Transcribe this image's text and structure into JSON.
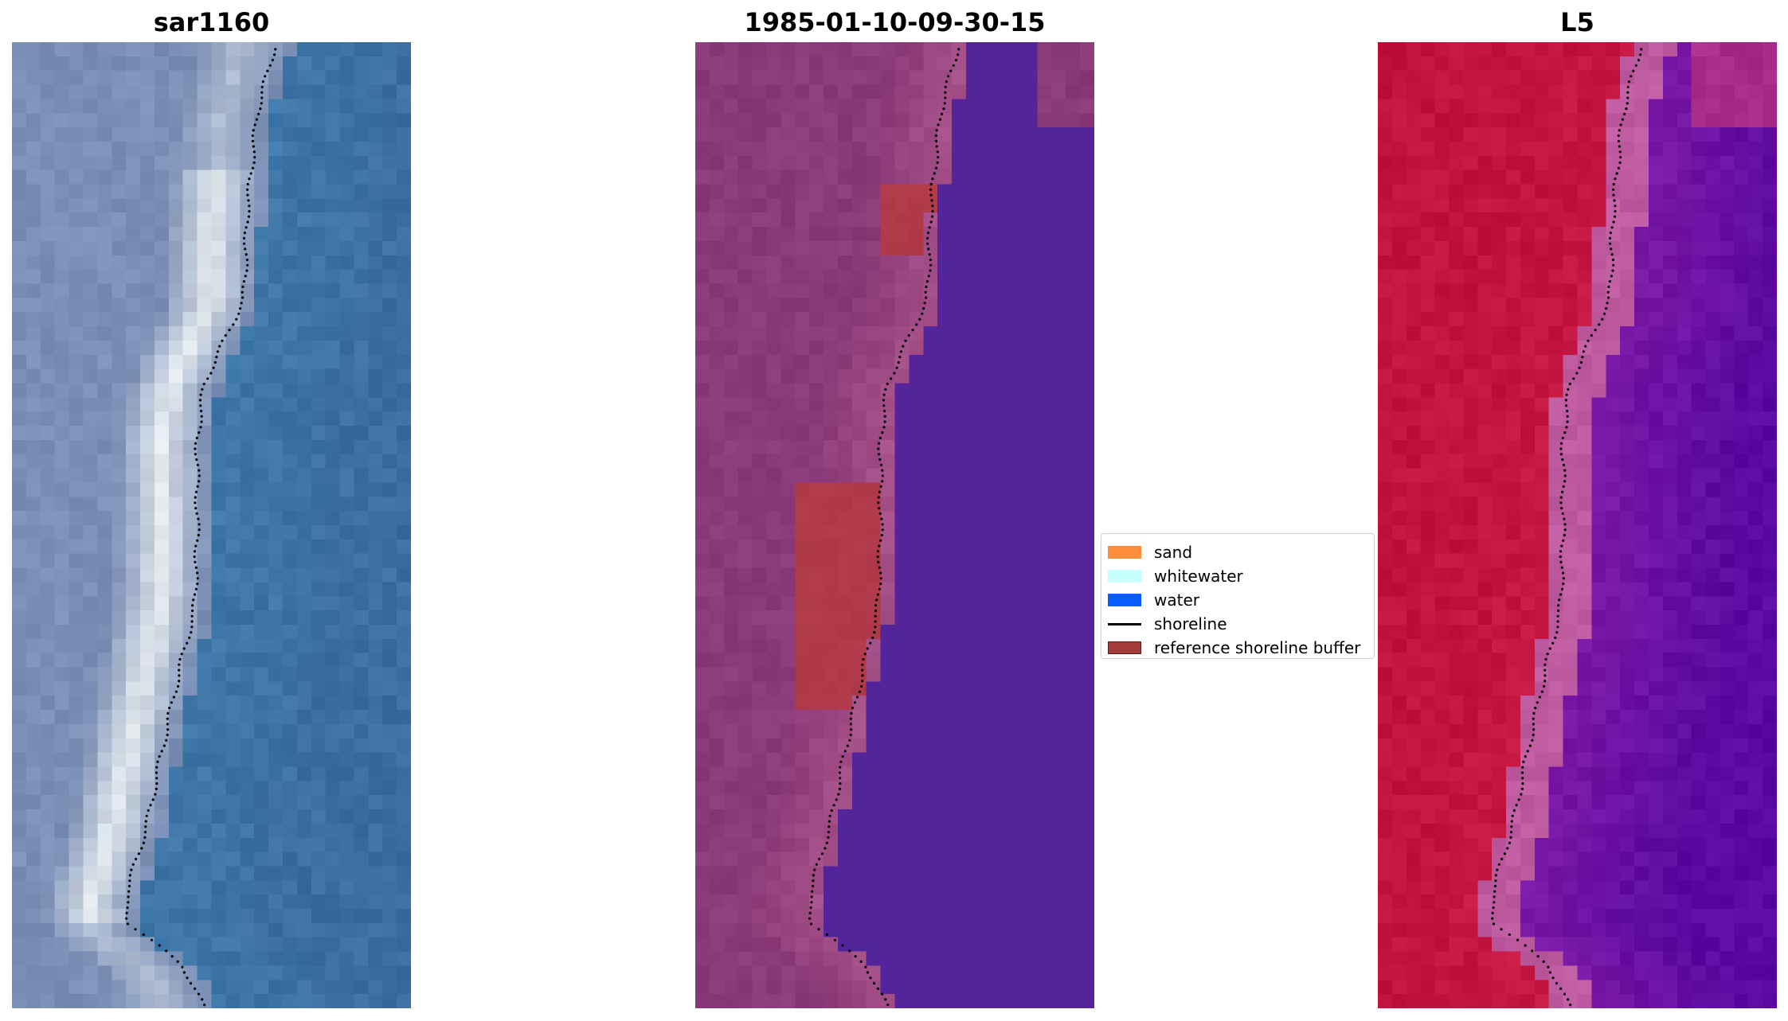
{
  "panels": [
    {
      "title": "sar1160",
      "palette": "rgb"
    },
    {
      "title": "1985-01-10-09-30-15",
      "palette": "classified"
    },
    {
      "title": "L5",
      "palette": "index"
    }
  ],
  "legend": {
    "items": [
      {
        "label": "sand",
        "kind": "patch",
        "color": "#ff8c3a"
      },
      {
        "label": "whitewater",
        "kind": "patch",
        "color": "#c8ffff"
      },
      {
        "label": "water",
        "kind": "patch",
        "color": "#0a5cff"
      },
      {
        "label": "shoreline",
        "kind": "line",
        "color": "#000000"
      },
      {
        "label": "reference shoreline buffer",
        "kind": "patch",
        "color": "#a53c3c"
      }
    ]
  },
  "colors": {
    "water_rgb": "#3f78aa",
    "land_rgb": "#7a8fb5",
    "sand_rgb": "#f2f6f6",
    "class_water": "#54249a",
    "class_land": "#8a3a78",
    "class_buffer": "#b03a4a",
    "index_land": "#c4123e",
    "index_water": "#7a18a6"
  }
}
